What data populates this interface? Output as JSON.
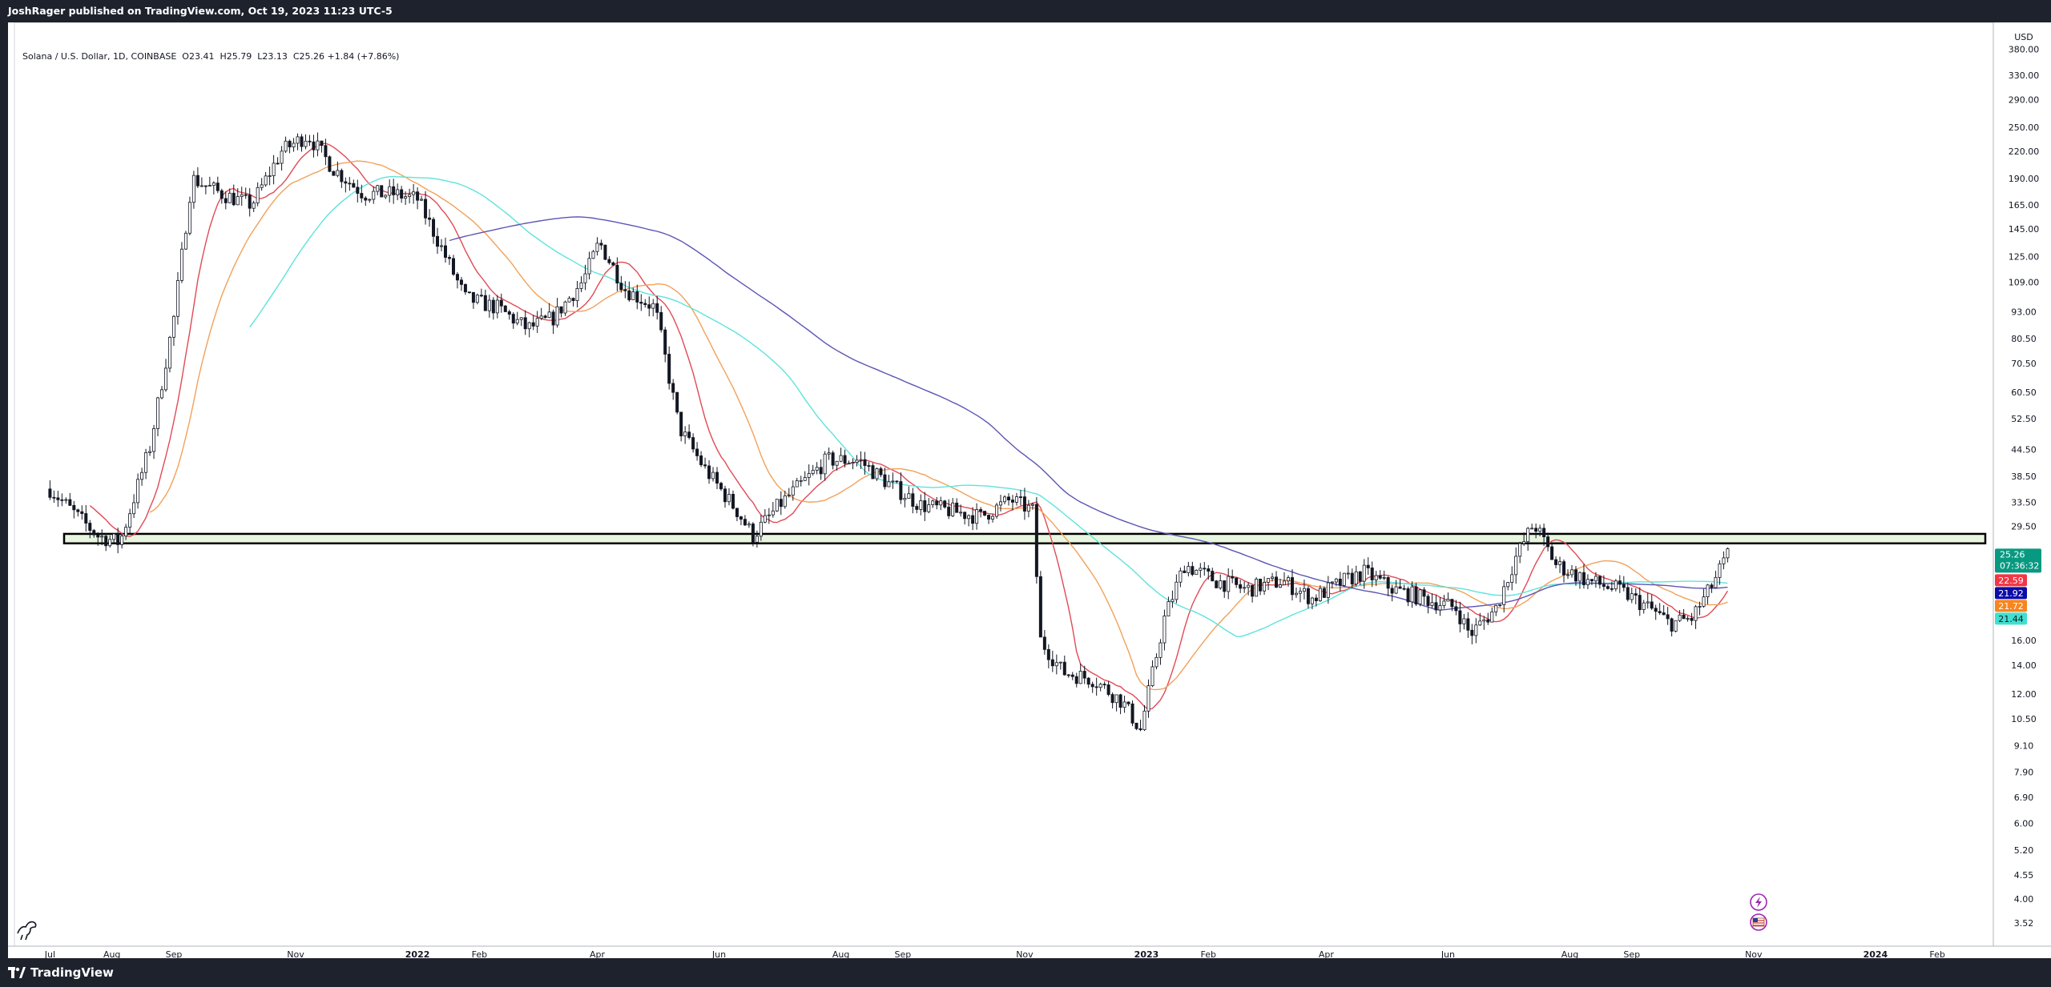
{
  "topbar": {
    "text": "JoshRager published on TradingView.com, Oct 19, 2023 11:23 UTC-5"
  },
  "footer": {
    "brand": "TradingView"
  },
  "legend": {
    "symbol": "Solana / U.S. Dollar, 1D, COINBASE",
    "open": "O23.41",
    "high": "H25.79",
    "low": "L23.13",
    "close": "C25.26",
    "change": "+1.84 (+7.86%)"
  },
  "price_axis": {
    "currency": "USD",
    "ticks": [
      "380.00",
      "330.00",
      "290.00",
      "250.00",
      "220.00",
      "190.00",
      "165.00",
      "145.00",
      "125.00",
      "109.00",
      "93.00",
      "80.50",
      "70.50",
      "60.50",
      "52.50",
      "44.50",
      "38.50",
      "33.50",
      "29.50",
      "16.00",
      "14.00",
      "12.00",
      "10.50",
      "9.10",
      "7.90",
      "6.90",
      "6.00",
      "5.20",
      "4.55",
      "4.00",
      "3.52"
    ],
    "last_price": {
      "value": "25.26",
      "countdown": "07:36:32",
      "color": "#089981"
    },
    "ma_labels": [
      {
        "value": "22.59",
        "color": "#f23645"
      },
      {
        "value": "21.92",
        "color": "#0c0ca8"
      },
      {
        "value": "21.72",
        "color": "#f7861f"
      },
      {
        "value": "21.44",
        "color": "#3fe0d0"
      }
    ]
  },
  "time_axis": {
    "labels": [
      "Jul",
      "Aug",
      "Sep",
      "Nov",
      "2022",
      "Feb",
      "Apr",
      "Jun",
      "Aug",
      "Sep",
      "Nov",
      "2023",
      "Feb",
      "Apr",
      "Jun",
      "Aug",
      "Sep",
      "Nov",
      "2024",
      "Feb"
    ]
  },
  "colors": {
    "ma_red": "#e04a55",
    "ma_orange": "#f2a15a",
    "ma_cyan": "#5fe3dc",
    "ma_blue": "#5c55b5",
    "candle": "#131722",
    "zone_fill": "#e9f6df",
    "zone_border": "#000000"
  },
  "icons": {
    "alert": "lightning-icon",
    "flag": "us-flag-icon",
    "logo": "dino-logo-icon"
  },
  "chart_data": {
    "type": "line",
    "title": "Solana / U.S. Dollar, 1D, COINBASE",
    "xlabel": "",
    "ylabel": "USD",
    "scale": "log",
    "ylim": [
      3.3,
      420
    ],
    "grid": false,
    "support_zone": [
      26.9,
      28.3
    ],
    "x": [
      "2021-07-01",
      "2021-07-15",
      "2021-07-25",
      "2021-08-05",
      "2021-08-20",
      "2021-09-01",
      "2021-09-10",
      "2021-09-25",
      "2021-10-10",
      "2021-10-25",
      "2021-11-07",
      "2021-11-20",
      "2021-12-05",
      "2021-12-20",
      "2022-01-01",
      "2022-01-10",
      "2022-01-25",
      "2022-02-10",
      "2022-02-25",
      "2022-03-10",
      "2022-03-25",
      "2022-04-02",
      "2022-04-15",
      "2022-04-30",
      "2022-05-12",
      "2022-05-25",
      "2022-06-10",
      "2022-06-18",
      "2022-07-01",
      "2022-07-15",
      "2022-07-25",
      "2022-08-10",
      "2022-08-25",
      "2022-09-10",
      "2022-09-25",
      "2022-10-10",
      "2022-10-25",
      "2022-11-05",
      "2022-11-09",
      "2022-11-20",
      "2022-12-05",
      "2022-12-20",
      "2022-12-29",
      "2023-01-10",
      "2023-01-20",
      "2023-02-05",
      "2023-02-20",
      "2023-03-10",
      "2023-03-25",
      "2023-04-10",
      "2023-04-20",
      "2023-05-05",
      "2023-05-20",
      "2023-06-05",
      "2023-06-12",
      "2023-06-25",
      "2023-07-05",
      "2023-07-14",
      "2023-07-25",
      "2023-08-10",
      "2023-08-25",
      "2023-09-10",
      "2023-09-20",
      "2023-10-01",
      "2023-10-10",
      "2023-10-19"
    ],
    "series": [
      {
        "name": "",
        "values": [
          36,
          31,
          28,
          27,
          45,
          90,
          190,
          175,
          165,
          220,
          240,
          200,
          175,
          175,
          170,
          140,
          100,
          95,
          85,
          90,
          110,
          135,
          105,
          95,
          50,
          40,
          32,
          28,
          33,
          38,
          42,
          42,
          37,
          33,
          32,
          31,
          34,
          32,
          16,
          13.5,
          13,
          11.5,
          9.9,
          18,
          24,
          22,
          21,
          22,
          20,
          22,
          23,
          21,
          20,
          19,
          16.5,
          19,
          25,
          30,
          24,
          22,
          21,
          19,
          17.5,
          18,
          21,
          25.26
        ]
      }
    ]
  }
}
